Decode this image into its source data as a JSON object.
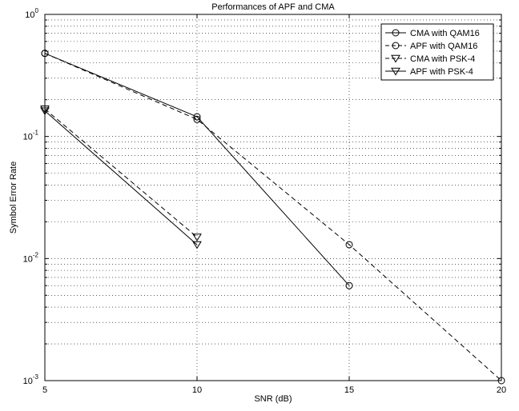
{
  "chart_data": {
    "type": "line",
    "title": "Performances of APF and CMA",
    "xlabel": "SNR (dB)",
    "ylabel": "Symbol Error Rate",
    "xlim": [
      5,
      20
    ],
    "ylim": [
      0.001,
      1
    ],
    "yscale": "log",
    "grid": true,
    "legend_position": "top-right",
    "x_ticks": [
      5,
      10,
      15,
      20
    ],
    "x_tick_labels": [
      "5",
      "10",
      "15",
      "20"
    ],
    "y_ticks": [
      0.001,
      0.01,
      0.1,
      1
    ],
    "y_tick_labels": [
      {
        "base": "10",
        "exp": "-3"
      },
      {
        "base": "10",
        "exp": "-2"
      },
      {
        "base": "10",
        "exp": "-1"
      },
      {
        "base": "10",
        "exp": "0"
      }
    ],
    "series": [
      {
        "name": "CMA with QAM16",
        "marker": "circle",
        "linestyle": "solid",
        "x": [
          5,
          10,
          15
        ],
        "y": [
          0.48,
          0.145,
          0.006
        ]
      },
      {
        "name": "APF with QAM16",
        "marker": "circle",
        "linestyle": "dashed",
        "x": [
          5,
          10,
          15,
          20
        ],
        "y": [
          0.48,
          0.138,
          0.013,
          0.001
        ]
      },
      {
        "name": "CMA with PSK-4",
        "marker": "triangle-down",
        "linestyle": "dashed",
        "x": [
          5,
          10
        ],
        "y": [
          0.168,
          0.015
        ]
      },
      {
        "name": "APF with PSK-4",
        "marker": "triangle-down",
        "linestyle": "solid",
        "x": [
          5,
          10
        ],
        "y": [
          0.162,
          0.013
        ]
      }
    ]
  }
}
